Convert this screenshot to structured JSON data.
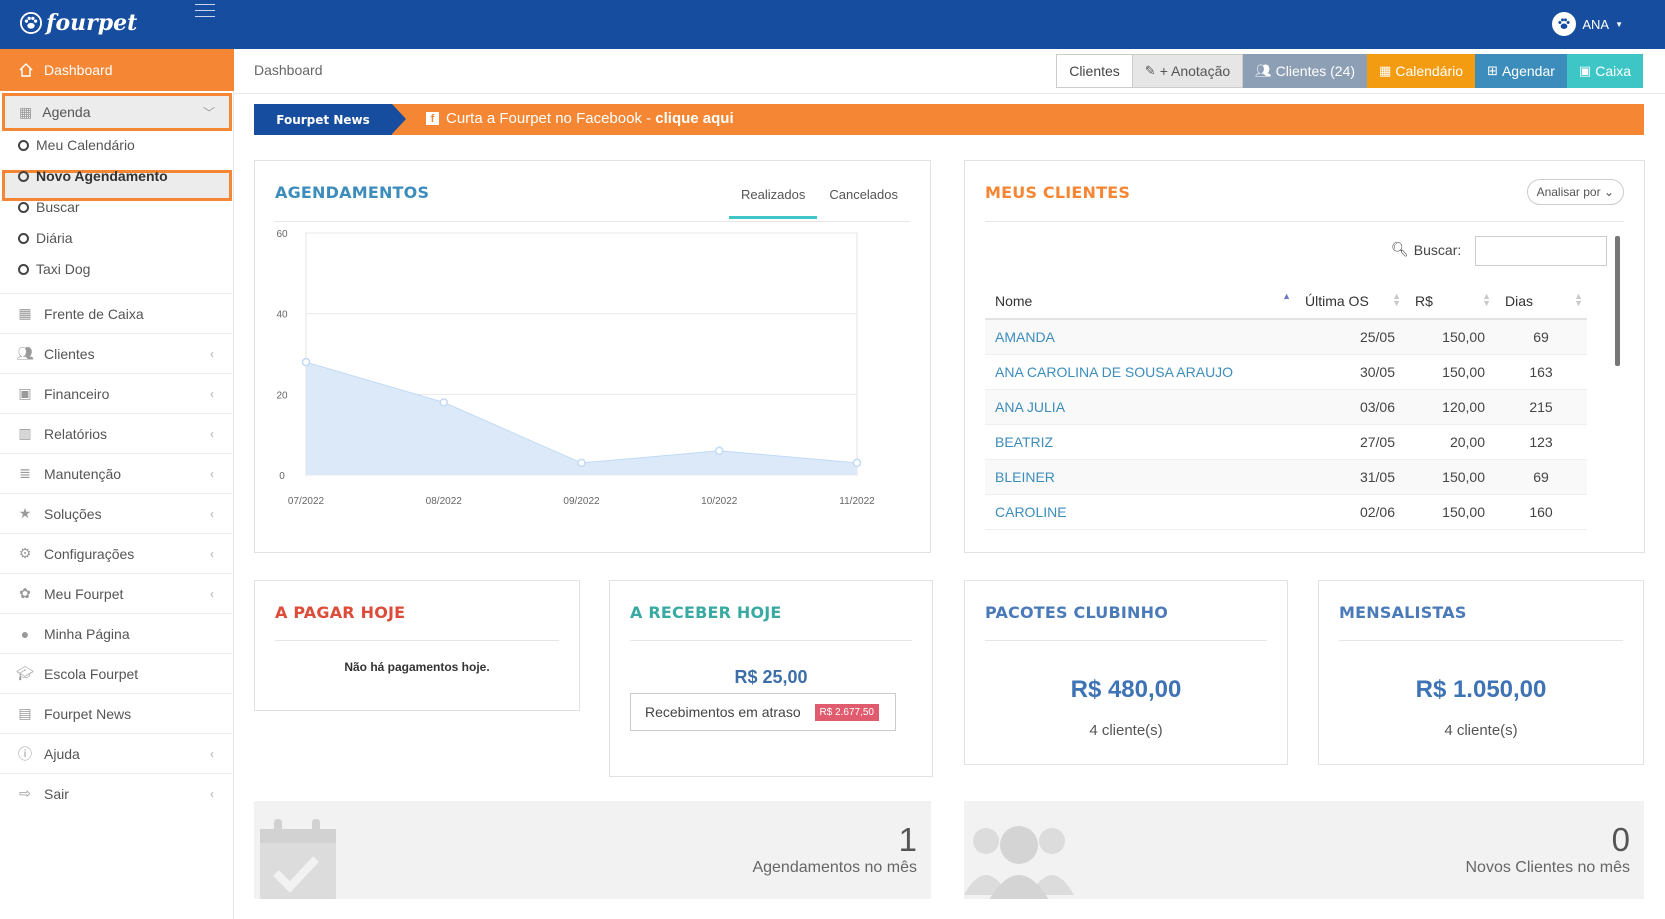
{
  "app": {
    "brand": "fourpet",
    "user": "ANA"
  },
  "sidebar": {
    "dashboard": "Dashboard",
    "agenda": "Agenda",
    "agenda_items": [
      "Meu Calendário",
      "Novo Agendamento",
      "Buscar",
      "Diária",
      "Taxi Dog"
    ],
    "items": [
      {
        "label": "Frente de Caixa",
        "icon": "calculator-icon"
      },
      {
        "label": "Clientes",
        "icon": "users-icon"
      },
      {
        "label": "Financeiro",
        "icon": "money-icon"
      },
      {
        "label": "Relatórios",
        "icon": "bar-chart-icon"
      },
      {
        "label": "Manutenção",
        "icon": "database-icon"
      },
      {
        "label": "Soluções",
        "icon": "star-icon"
      },
      {
        "label": "Configurações",
        "icon": "gears-icon"
      },
      {
        "label": "Meu Fourpet",
        "icon": "paw-icon"
      },
      {
        "label": "Minha Página",
        "icon": "globe-icon"
      },
      {
        "label": "Escola Fourpet",
        "icon": "graduation-cap-icon"
      },
      {
        "label": "Fourpet News",
        "icon": "newspaper-icon"
      },
      {
        "label": "Ajuda",
        "icon": "info-icon"
      },
      {
        "label": "Sair",
        "icon": "sign-out-icon"
      }
    ]
  },
  "header": {
    "breadcrumb": "Dashboard",
    "actions": {
      "clientes": "Clientes",
      "anotacao": "+ Anotação",
      "clientes_count": "Clientes (24)",
      "calendario": "Calendário",
      "agendar": "Agendar",
      "caixa": "Caixa"
    }
  },
  "news": {
    "tag": "Fourpet News",
    "text": "Curta a Fourpet no Facebook - ",
    "link": "clique aqui"
  },
  "agendamentos": {
    "title": "AGENDAMENTOS",
    "tabs": [
      "Realizados",
      "Cancelados"
    ],
    "active_tab": "Realizados"
  },
  "chart_data": {
    "type": "area",
    "title": "",
    "x": [
      "07/2022",
      "08/2022",
      "09/2022",
      "10/2022",
      "11/2022"
    ],
    "series": [
      {
        "values": [
          28,
          18,
          3,
          6,
          3
        ]
      }
    ],
    "yticks": [
      0,
      20,
      40,
      60
    ],
    "ylim": [
      0,
      60
    ],
    "grid": true,
    "color": "#dce9f8",
    "point_color": "#c2daf5"
  },
  "clientes": {
    "title": "MEUS CLIENTES",
    "analisar": "Analisar por",
    "buscar": "Buscar:",
    "columns": [
      "Nome",
      "Última OS",
      "R$",
      "Dias"
    ],
    "rows": [
      [
        "AMANDA",
        "25/05",
        "150,00",
        "69"
      ],
      [
        "ANA CAROLINA DE SOUSA ARAUJO",
        "30/05",
        "150,00",
        "163"
      ],
      [
        "ANA JULIA",
        "03/06",
        "120,00",
        "215"
      ],
      [
        "BEATRIZ",
        "27/05",
        "20,00",
        "123"
      ],
      [
        "BLEINER",
        "31/05",
        "150,00",
        "69"
      ],
      [
        "CAROLINE",
        "02/06",
        "150,00",
        "160"
      ]
    ]
  },
  "pagar": {
    "title": "A PAGAR HOJE",
    "empty": "Não há pagamentos hoje."
  },
  "receber": {
    "title": "A RECEBER HOJE",
    "value": "R$ 25,00",
    "atraso_label": "Recebimentos em atraso",
    "atraso_value": "R$ 2.677,50"
  },
  "pacotes": {
    "title": "PACOTES CLUBINHO",
    "value": "R$ 480,00",
    "sub": "4 cliente(s)"
  },
  "mensalistas": {
    "title": "MENSALISTAS",
    "value": "R$ 1.050,00",
    "sub": "4 cliente(s)"
  },
  "info_agend": {
    "value": "1",
    "label": "Agendamentos no mês"
  },
  "info_clientes": {
    "value": "0",
    "label": "Novos Clientes no mês"
  },
  "colors": {
    "navy": "#164d9e",
    "orange": "#f58634",
    "blue": "#3c8dbc",
    "teal": "#3ec5c5"
  }
}
